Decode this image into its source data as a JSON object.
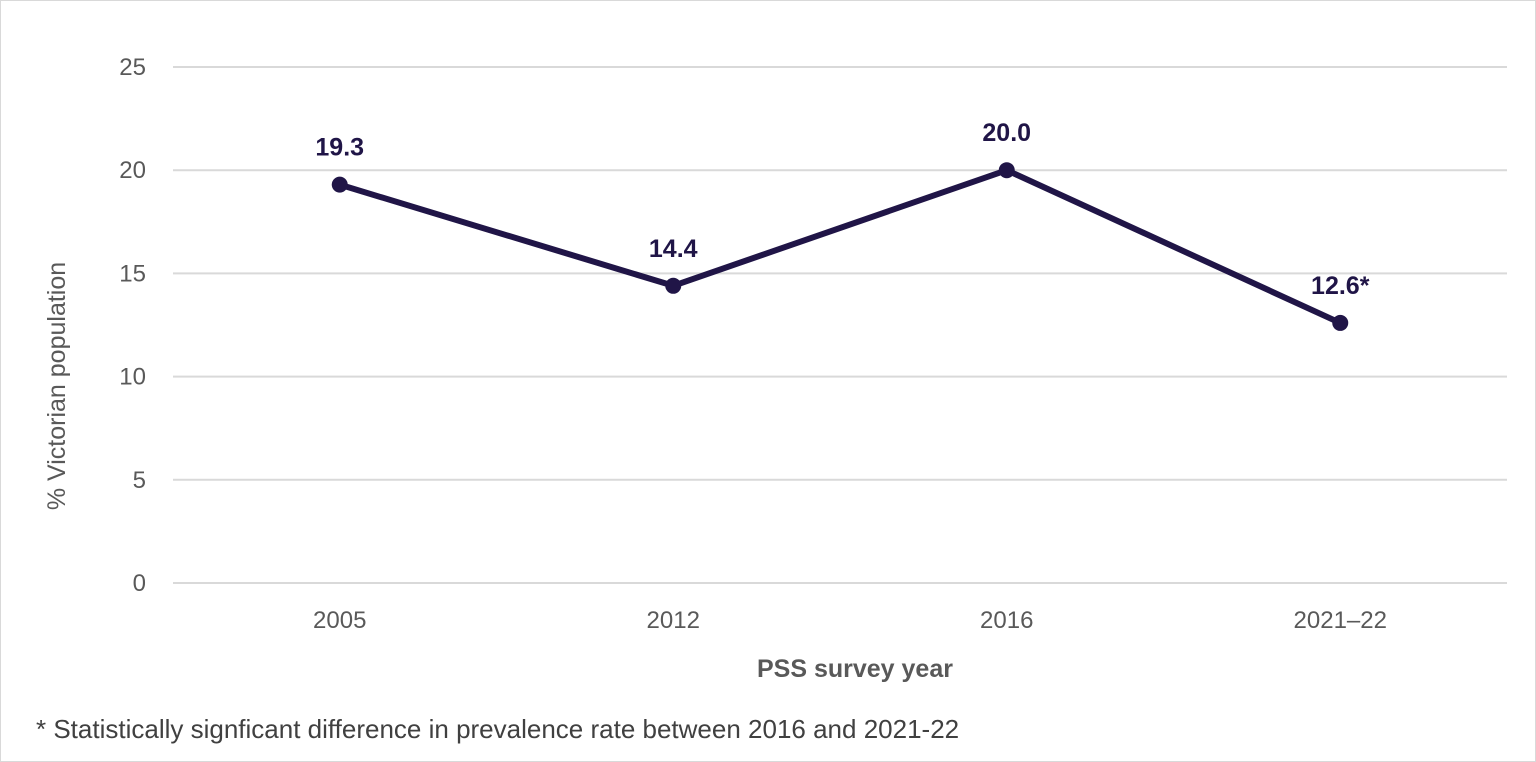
{
  "chart_data": {
    "type": "line",
    "categories": [
      "2005",
      "2012",
      "2016",
      "2021–22"
    ],
    "series": [
      {
        "values": [
          19.3,
          14.4,
          20.0,
          12.6
        ],
        "labels": [
          "19.3",
          "14.4",
          "20.0",
          "12.6*"
        ],
        "color": "#201547"
      }
    ],
    "xlabel": "PSS survey year",
    "ylabel": "% Victorian population",
    "ylim": [
      0,
      25
    ],
    "yticks": [
      0,
      5,
      10,
      15,
      20,
      25
    ],
    "grid": true,
    "gridColor": "#d9d9d9"
  },
  "footnote": "* Statistically signficant difference in prevalence rate between 2016 and 2021-22"
}
